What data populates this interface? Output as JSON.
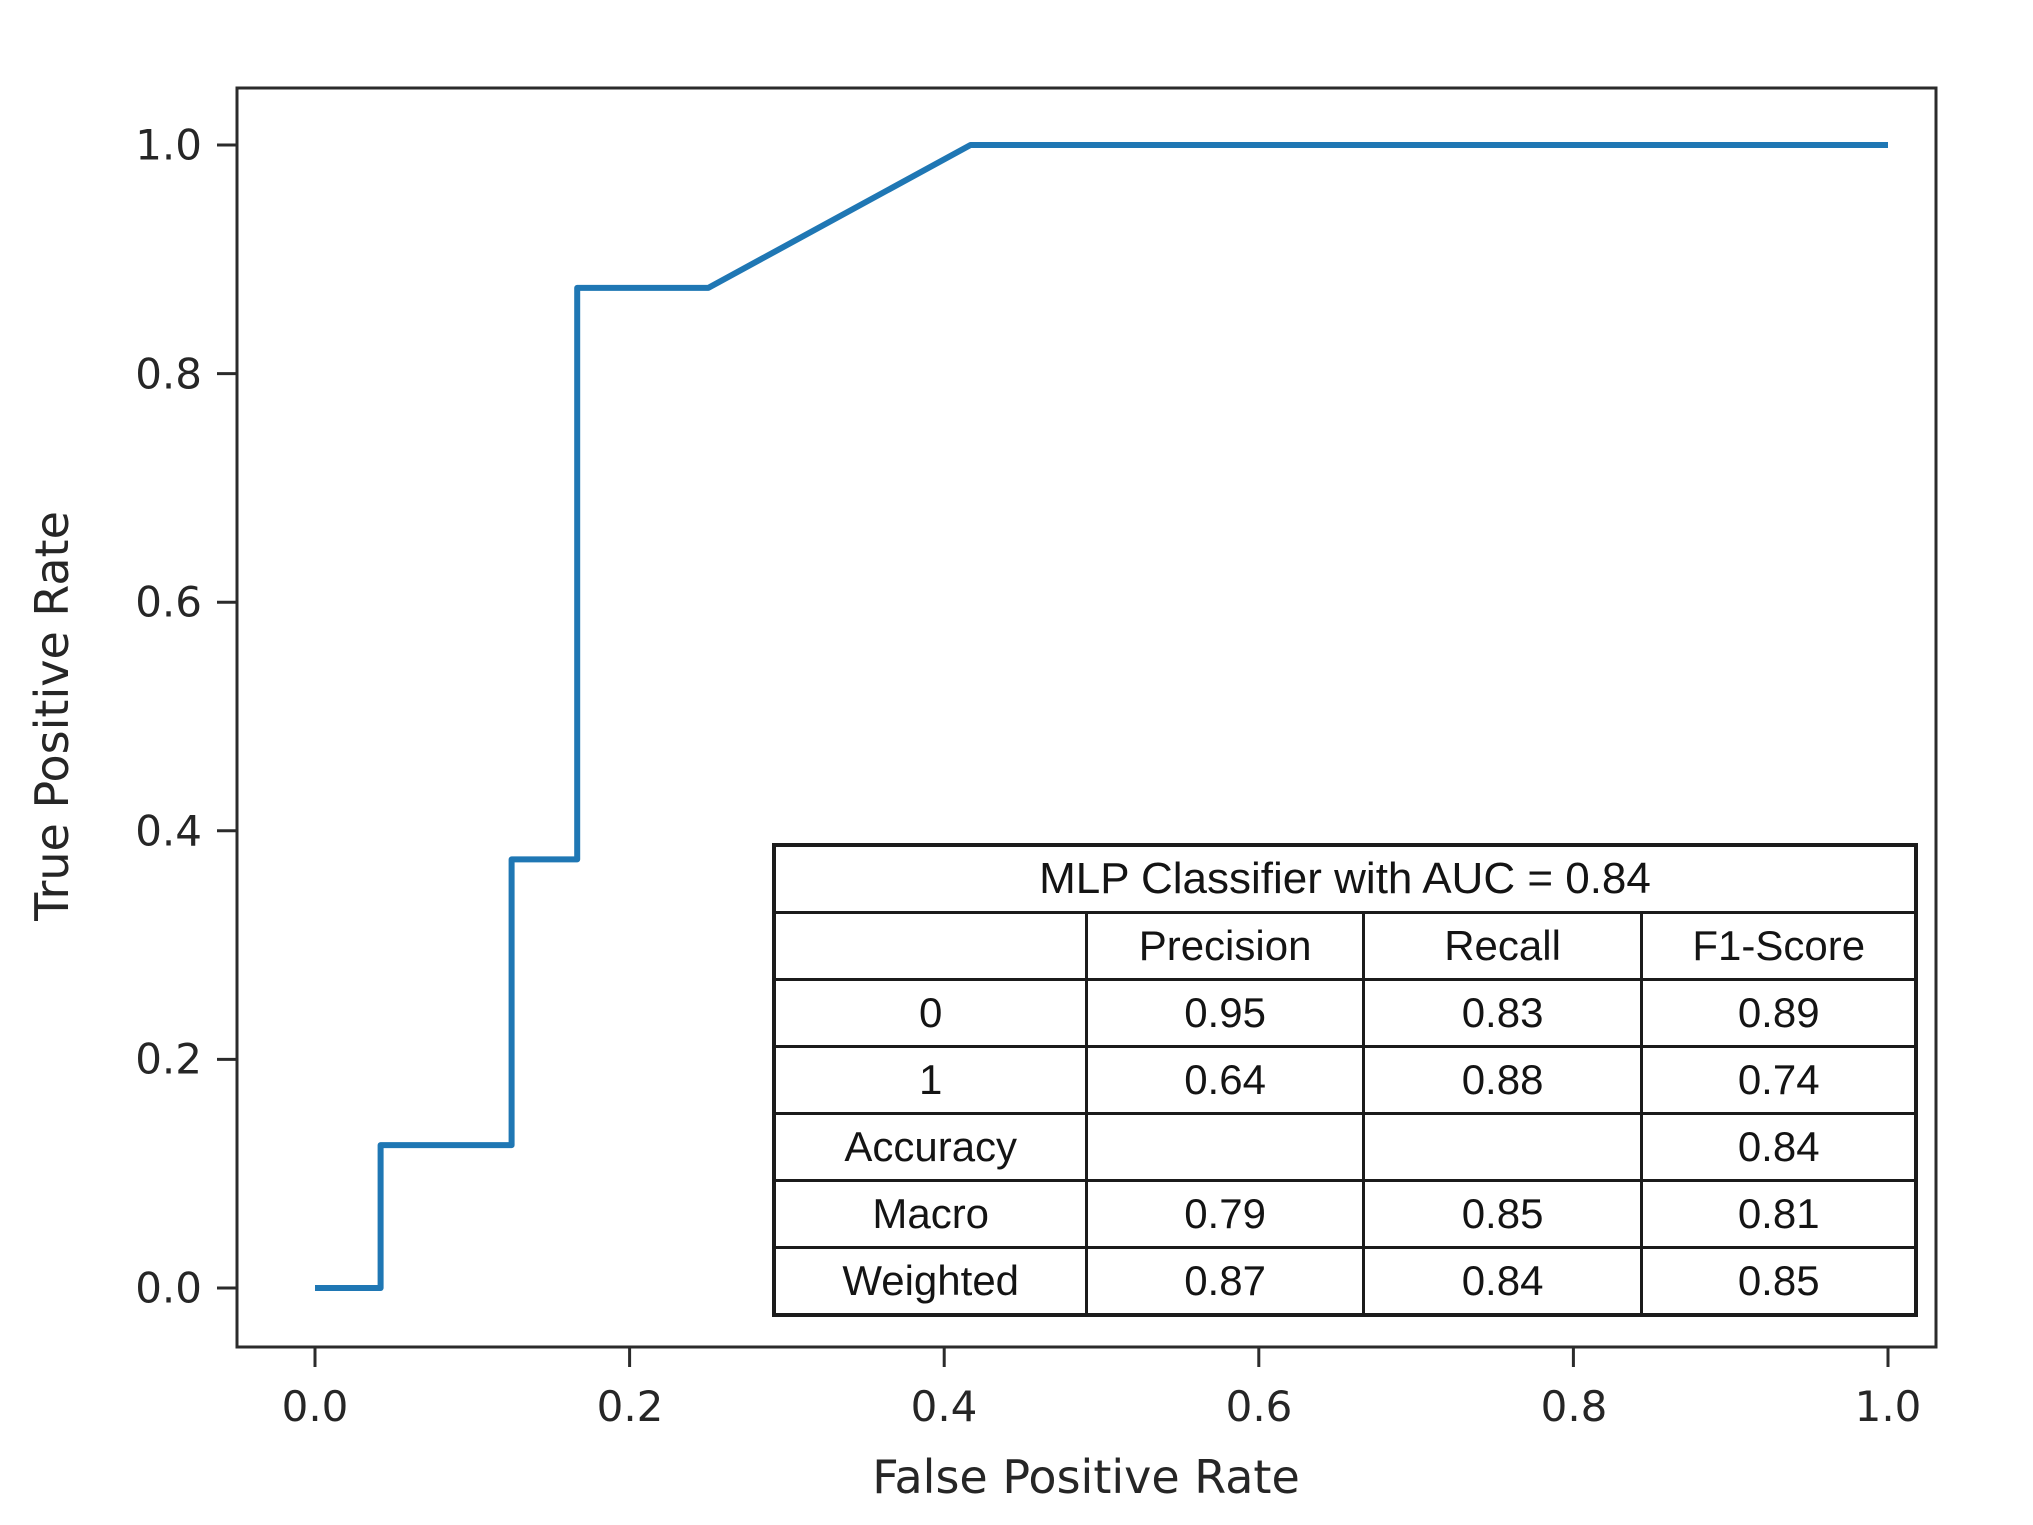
{
  "chart_data": {
    "type": "line",
    "xlabel": "False Positive Rate",
    "ylabel": "True Positive Rate",
    "xlim": [
      -0.05,
      1.05
    ],
    "ylim": [
      -0.05,
      1.05
    ],
    "grid": false,
    "legend": "none (metrics table overlaid in lower right)",
    "x_tick_values": [
      0.0,
      0.2,
      0.4,
      0.6,
      0.8,
      1.0
    ],
    "x_tick_labels": [
      "0.0",
      "0.2",
      "0.4",
      "0.6",
      "0.8",
      "1.0"
    ],
    "y_tick_values": [
      0.0,
      0.2,
      0.4,
      0.6,
      0.8,
      1.0
    ],
    "y_tick_labels": [
      "0.0",
      "0.2",
      "0.4",
      "0.6",
      "0.8",
      "1.0"
    ],
    "series": [
      {
        "name": "MLP Classifier ROC curve",
        "color": "#1f77b4",
        "points": [
          [
            0.0,
            0.0
          ],
          [
            0.0417,
            0.0
          ],
          [
            0.0417,
            0.125
          ],
          [
            0.125,
            0.125
          ],
          [
            0.125,
            0.375
          ],
          [
            0.1667,
            0.375
          ],
          [
            0.1667,
            0.875
          ],
          [
            0.25,
            0.875
          ],
          [
            0.4167,
            1.0
          ],
          [
            1.0,
            1.0
          ]
        ]
      }
    ]
  },
  "axes": {
    "x_label": "False Positive Rate",
    "y_label": "True Positive Rate"
  },
  "table": {
    "title": "MLP Classifier with AUC = 0.84",
    "auc": "0.84",
    "columns": [
      "",
      "Precision",
      "Recall",
      "F1-Score"
    ],
    "rows": [
      {
        "label": "0",
        "cells": [
          "0.95",
          "0.83",
          "0.89"
        ]
      },
      {
        "label": "1",
        "cells": [
          "0.64",
          "0.88",
          "0.74"
        ]
      },
      {
        "label": "Accuracy",
        "cells": [
          "",
          "",
          "0.84"
        ]
      },
      {
        "label": "Macro",
        "cells": [
          "0.79",
          "0.85",
          "0.81"
        ]
      },
      {
        "label": "Weighted",
        "cells": [
          "0.87",
          "0.84",
          "0.85"
        ]
      }
    ]
  },
  "colors": {
    "roc_line": "#1f77b4",
    "axis": "#2b2b2b",
    "table_border": "#1b1b1b",
    "background": "#ffffff"
  }
}
